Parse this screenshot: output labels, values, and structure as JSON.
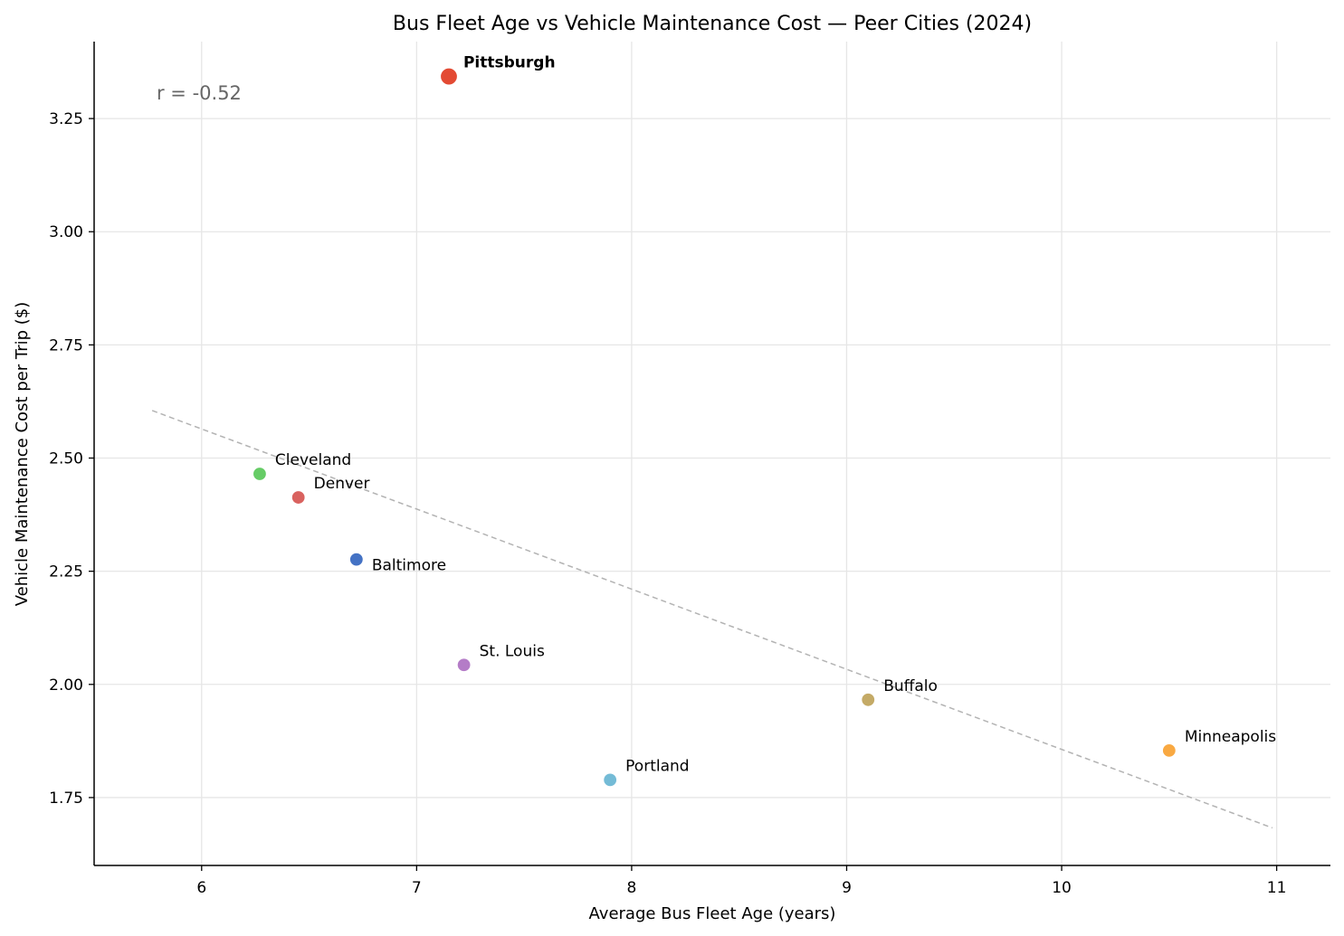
{
  "chart_data": {
    "type": "scatter",
    "title": "Bus Fleet Age vs Vehicle Maintenance Cost — Peer Cities (2024)",
    "xlabel": "Average Bus Fleet Age (years)",
    "ylabel": "Vehicle Maintenance Cost per Trip ($)",
    "xlim": [
      5.5,
      11.25
    ],
    "ylim": [
      1.6,
      3.42
    ],
    "xticks": [
      6,
      7,
      8,
      9,
      10,
      11
    ],
    "xtick_labels": [
      "6",
      "7",
      "8",
      "9",
      "10",
      "11"
    ],
    "yticks": [
      1.75,
      2.0,
      2.25,
      2.5,
      2.75,
      3.0,
      3.25
    ],
    "ytick_labels": [
      "1.75",
      "2.00",
      "2.25",
      "2.50",
      "2.75",
      "3.00",
      "3.25"
    ],
    "grid": true,
    "annotation": "r = -0.52",
    "trendline": {
      "x": [
        5.77,
        10.98
      ],
      "y": [
        2.605,
        1.683
      ],
      "color": "#b3b3b3",
      "style": "dashed"
    },
    "points": [
      {
        "label": "Pittsburgh",
        "x": 7.15,
        "y": 3.343,
        "color": "#e34a33",
        "highlight": true,
        "label_pos": "above-right"
      },
      {
        "label": "Cleveland",
        "x": 6.27,
        "y": 2.465,
        "color": "#66cc66",
        "highlight": false,
        "label_pos": "above-right"
      },
      {
        "label": "Denver",
        "x": 6.45,
        "y": 2.413,
        "color": "#d9625f",
        "highlight": false,
        "label_pos": "above-right"
      },
      {
        "label": "Baltimore",
        "x": 6.72,
        "y": 2.276,
        "color": "#4472c4",
        "highlight": false,
        "label_pos": "below-right"
      },
      {
        "label": "St. Louis",
        "x": 7.22,
        "y": 2.043,
        "color": "#b47cc7",
        "highlight": false,
        "label_pos": "above-right"
      },
      {
        "label": "Portland",
        "x": 7.9,
        "y": 1.789,
        "color": "#74bbd6",
        "highlight": false,
        "label_pos": "above-right"
      },
      {
        "label": "Buffalo",
        "x": 9.1,
        "y": 1.966,
        "color": "#c4aa66",
        "highlight": false,
        "label_pos": "above-right"
      },
      {
        "label": "Minneapolis",
        "x": 10.5,
        "y": 1.854,
        "color": "#f9a942",
        "highlight": false,
        "label_pos": "above-right"
      }
    ]
  }
}
